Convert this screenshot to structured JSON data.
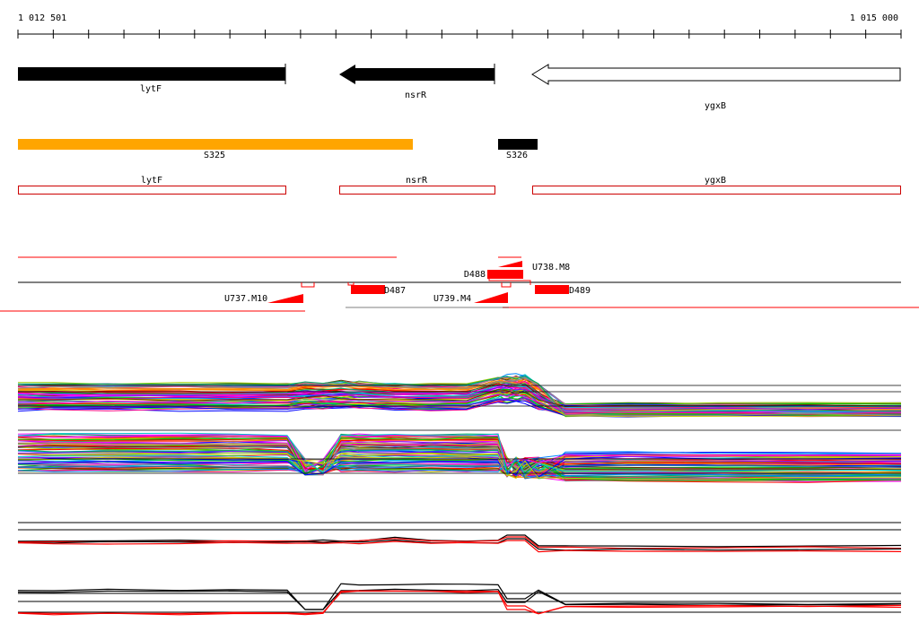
{
  "ruler": {
    "start_label": "1 012 501",
    "end_label": "1 015 000",
    "start_bp": 1012501,
    "end_bp": 1015000,
    "tick_count": 26
  },
  "genes": [
    {
      "label": "lytF",
      "strand": "+",
      "fill": "#000000",
      "start_bp": 1012501,
      "end_bp": 1013262
    },
    {
      "label": "nsrR",
      "strand": "-",
      "fill": "#000000",
      "start_bp": 1013415,
      "end_bp": 1013854
    },
    {
      "label": "ygxB",
      "strand": "-",
      "fill": "#ffffff",
      "start_bp": 1013962,
      "end_bp": 1015000
    }
  ],
  "segments": [
    {
      "label": "S325",
      "color": "#ffa500",
      "start_bp": 1012501,
      "end_bp": 1013624
    },
    {
      "label": "S326",
      "color": "#000000",
      "start_bp": 1013862,
      "end_bp": 1013974
    }
  ],
  "annotations": [
    {
      "label": "lytF",
      "start_bp": 1012501,
      "end_bp": 1013262
    },
    {
      "label": "nsrR",
      "start_bp": 1013415,
      "end_bp": 1013854
    },
    {
      "label": "ygxB",
      "start_bp": 1013962,
      "end_bp": 1015000
    }
  ],
  "features": {
    "transcription_units": [
      {
        "label": "U738.M8",
        "strand": "+"
      },
      {
        "label": "U737.M10",
        "strand": "-"
      },
      {
        "label": "U739.M4",
        "strand": "-"
      }
    ],
    "downshifts": [
      {
        "label": "D488",
        "strand": "+"
      },
      {
        "label": "D487",
        "strand": "-"
      },
      {
        "label": "D489",
        "strand": "-"
      }
    ]
  },
  "colors": {
    "feature_red": "#ff0000",
    "gene_outline": "#000000",
    "annotation_outline": "#cc0000",
    "profile_palette": [
      "#ff0000",
      "#00cc00",
      "#0000ff",
      "#ff00ff",
      "#00cccc",
      "#cccc00",
      "#ff8800",
      "#8800ff",
      "#00aa66",
      "#ff0088",
      "#888888",
      "#663300",
      "#0088ff",
      "#99cc00",
      "#cc6699",
      "#336699"
    ]
  }
}
